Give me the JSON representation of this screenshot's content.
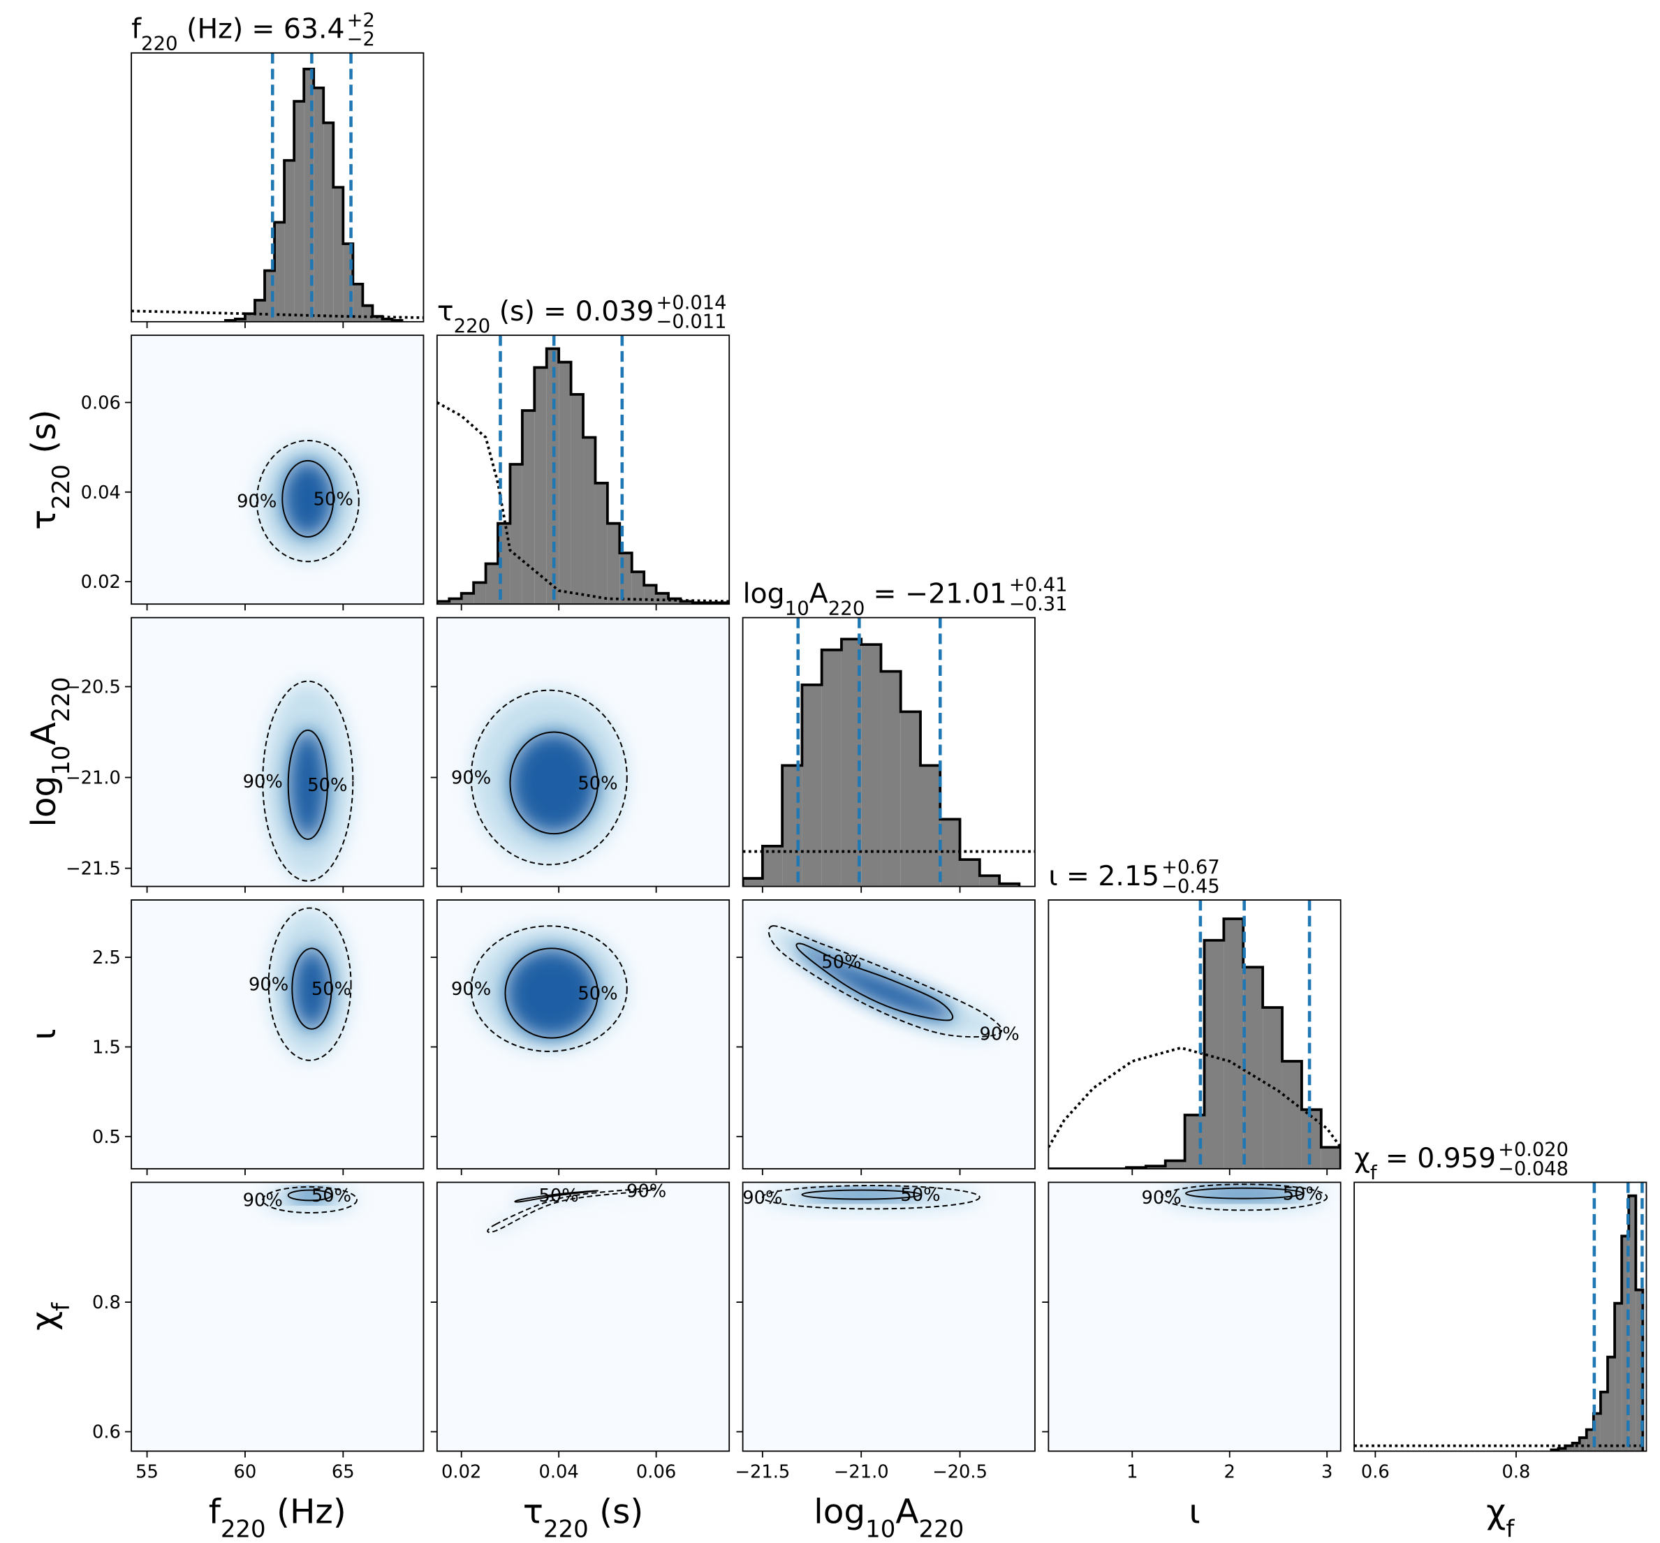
{
  "chart_data": {
    "type": "corner",
    "hist_ylim": [
      0,
      100
    ],
    "colors": {
      "background": "#f7fbff",
      "outer": "#9ecae1",
      "inner": "#08519c",
      "hist": "#808080",
      "quantile": "#1f77b4"
    },
    "parameters": [
      {
        "label": [
          "f",
          "220",
          " (Hz)"
        ],
        "title_value": "= 63.4",
        "upper": "+2",
        "lower": "−2",
        "lim": [
          54.2,
          69.1
        ],
        "ticks": [
          55,
          60,
          65
        ],
        "yticks": [],
        "bins": [
          59,
          59.5,
          60,
          60.5,
          61,
          61.5,
          62,
          62.5,
          63,
          63.5,
          64,
          64.5,
          65,
          65.5,
          66,
          66.5,
          67,
          67.5,
          68
        ],
        "counts": [
          0.5,
          1,
          3,
          8,
          19,
          37,
          60,
          82,
          94,
          87,
          74,
          50,
          29,
          14,
          6,
          2,
          1,
          0.5
        ],
        "prior_x": [
          54.2,
          60,
          65,
          69.1
        ],
        "prior": [
          4,
          3,
          2,
          1.5
        ],
        "quantiles": [
          61.4,
          63.4,
          65.4
        ],
        "panels": []
      },
      {
        "label": [
          "τ",
          "220",
          " (s)"
        ],
        "title_value": "= 0.039",
        "upper": "+0.014",
        "lower": "−0.011",
        "lim": [
          0.015,
          0.075
        ],
        "ticks": [
          0.02,
          0.04,
          0.06
        ],
        "yticks": [
          0.02,
          0.04,
          0.06
        ],
        "bins": [
          0.015,
          0.0175,
          0.02,
          0.0225,
          0.025,
          0.0275,
          0.03,
          0.0325,
          0.035,
          0.0375,
          0.04,
          0.0425,
          0.045,
          0.0475,
          0.05,
          0.0525,
          0.055,
          0.0575,
          0.06,
          0.0625,
          0.065,
          0.0675,
          0.07,
          0.0725,
          0.075
        ],
        "counts": [
          1,
          2,
          4,
          8,
          15,
          30,
          52,
          72,
          88,
          95,
          90,
          78,
          62,
          45,
          30,
          19,
          12,
          7,
          4,
          2,
          1,
          0.5,
          0.5,
          0.5
        ],
        "prior_x": [
          0.015,
          0.02,
          0.025,
          0.0275,
          0.03,
          0.04,
          0.05,
          0.075
        ],
        "prior": [
          75,
          70,
          62,
          45,
          20,
          5,
          2,
          1
        ],
        "quantiles": [
          0.028,
          0.039,
          0.053
        ],
        "panels": [
          {
            "contours": [
              {
                "label": "90%",
                "dashed": true,
                "cx": 63.2,
                "cy": 0.038,
                "rx": 2.6,
                "ry": 0.0135
              },
              {
                "label": "50%",
                "dashed": false,
                "cx": 63.2,
                "cy": 0.0385,
                "rx": 1.3,
                "ry": 0.0085
              }
            ]
          }
        ]
      },
      {
        "label": [
          "log",
          "10",
          "A",
          "220"
        ],
        "title_value": "= −21.01",
        "upper": "+0.41",
        "lower": "−0.31",
        "lim": [
          -21.6,
          -20.12
        ],
        "ticks": [
          {
            "value": -21.5,
            "label": "−21.5"
          },
          {
            "value": -21,
            "label": "−21.0"
          },
          {
            "value": -20.5,
            "label": "−20.5"
          }
        ],
        "yticks": [
          {
            "value": -21.5,
            "label": "−21.5"
          },
          {
            "value": -21,
            "label": "−21.0"
          },
          {
            "value": -20.5,
            "label": "−20.5"
          }
        ],
        "bins": [
          -21.6,
          -21.5,
          -21.4,
          -21.3,
          -21.2,
          -21.1,
          -21,
          -20.9,
          -20.8,
          -20.7,
          -20.6,
          -20.5,
          -20.4,
          -20.3,
          -20.2
        ],
        "counts": [
          3,
          15,
          45,
          75,
          88,
          92,
          90,
          80,
          65,
          45,
          25,
          10,
          4,
          1
        ],
        "prior_x": [
          -21.6,
          -21.2,
          -20.8,
          -20.12
        ],
        "prior": [
          13,
          13,
          13,
          13
        ],
        "quantiles": [
          -21.32,
          -21.01,
          -20.6
        ],
        "panels": [
          {
            "contours": [
              {
                "label": "90%",
                "dashed": true,
                "cx": 63.2,
                "cy": -21.02,
                "rx": 2.3,
                "ry": 0.55
              },
              {
                "label": "50%",
                "dashed": false,
                "cx": 63.2,
                "cy": -21.04,
                "rx": 1.0,
                "ry": 0.3
              }
            ]
          },
          {
            "contours": [
              {
                "label": "90%",
                "dashed": true,
                "cx": 0.038,
                "cy": -21.0,
                "rx": 0.016,
                "ry": 0.48
              },
              {
                "label": "50%",
                "dashed": false,
                "cx": 0.039,
                "cy": -21.03,
                "rx": 0.009,
                "ry": 0.28
              }
            ]
          }
        ]
      },
      {
        "label": [
          "ι"
        ],
        "title_value": "= 2.15",
        "upper": "+0.67",
        "lower": "−0.45",
        "lim": [
          0.14,
          3.14
        ],
        "ticks": [
          1,
          2,
          3
        ],
        "yticks": [
          0.5,
          1.5,
          2.5
        ],
        "bins": [
          0.14,
          0.34,
          0.54,
          0.74,
          0.94,
          1.14,
          1.34,
          1.54,
          1.74,
          1.94,
          2.14,
          2.34,
          2.54,
          2.74,
          2.94,
          3.14
        ],
        "counts": [
          0,
          0,
          0,
          0,
          0.5,
          1,
          3,
          20,
          85,
          93,
          75,
          60,
          40,
          22,
          8
        ],
        "prior_x": [
          0.14,
          0.3,
          0.6,
          1.0,
          1.5,
          2.0,
          2.5,
          3.0,
          3.14
        ],
        "prior": [
          8,
          18,
          30,
          40,
          45,
          40,
          29,
          15,
          8
        ],
        "quantiles": [
          1.7,
          2.15,
          2.82
        ],
        "panels": [
          {
            "contours": [
              {
                "label": "90%",
                "dashed": true,
                "cx": 63.3,
                "cy": 2.2,
                "rx": 2.1,
                "ry": 0.85
              },
              {
                "label": "50%",
                "dashed": false,
                "cx": 63.4,
                "cy": 2.15,
                "rx": 1.0,
                "ry": 0.45
              }
            ]
          },
          {
            "contours": [
              {
                "label": "90%",
                "dashed": true,
                "cx": 0.038,
                "cy": 2.15,
                "rx": 0.016,
                "ry": 0.7
              },
              {
                "label": "50%",
                "dashed": false,
                "cx": 0.0385,
                "cy": 2.1,
                "rx": 0.0095,
                "ry": 0.5
              }
            ]
          },
          {
            "contours": [
              {
                "label": "90%",
                "dashed": true,
                "x": [
                  -21.45,
                  -21.2,
                  -20.85,
                  -20.4,
                  -20.3,
                  -20.6,
                  -21.0,
                  -21.4
                ],
                "y": [
                  2.85,
                  2.65,
                  2.35,
                  1.9,
                  1.65,
                  1.65,
                  2.0,
                  2.55
                ]
              },
              {
                "label": "50%",
                "dashed": false,
                "x": [
                  -21.3,
                  -21.1,
                  -20.85,
                  -20.6,
                  -20.55,
                  -20.8,
                  -21.05,
                  -21.3
                ],
                "y": [
                  2.65,
                  2.45,
                  2.25,
                  2.0,
                  1.8,
                  1.9,
                  2.15,
                  2.55
                ]
              }
            ]
          }
        ]
      },
      {
        "label": [
          "χ",
          "f"
        ],
        "title_value": "= 0.959",
        "upper": "+0.020",
        "lower": "−0.048",
        "lim": [
          0.57,
          0.985
        ],
        "ticks": [
          0.6,
          0.8
        ],
        "yticks": [
          0.6,
          0.8
        ],
        "bins": [
          0.85,
          0.86,
          0.87,
          0.88,
          0.89,
          0.9,
          0.91,
          0.92,
          0.93,
          0.94,
          0.95,
          0.96,
          0.97,
          0.98
        ],
        "counts": [
          0.5,
          1,
          2,
          3,
          5,
          8,
          14,
          22,
          35,
          55,
          80,
          95,
          60
        ],
        "prior_x": [
          0.57,
          0.98
        ],
        "prior": [
          2,
          2
        ],
        "quantiles": [
          0.911,
          0.959,
          0.979
        ],
        "panels": [
          {
            "contours": [
              {
                "label": "90%",
                "dashed": true,
                "cx": 63.3,
                "cy": 0.958,
                "rx": 2.4,
                "ry": 0.02
              },
              {
                "label": "50%",
                "dashed": false,
                "cx": 63.3,
                "cy": 0.965,
                "rx": 1.1,
                "ry": 0.008
              }
            ]
          },
          {
            "contours": [
              {
                "label": "90%",
                "dashed": true,
                "x": [
                  0.027,
                  0.04,
                  0.057,
                  0.058,
                  0.04,
                  0.027
                ],
                "y": [
                  0.92,
                  0.96,
                  0.975,
                  0.972,
                  0.955,
                  0.91
                ]
              },
              {
                "label": "50%",
                "dashed": false,
                "x": [
                  0.032,
                  0.04,
                  0.048,
                  0.04,
                  0.032
                ],
                "y": [
                  0.955,
                  0.965,
                  0.972,
                  0.967,
                  0.958
                ]
              }
            ]
          },
          {
            "contours": [
              {
                "label": "90%",
                "dashed": true,
                "cx": -20.95,
                "cy": 0.962,
                "rx": 0.55,
                "ry": 0.018
              },
              {
                "label": "50%",
                "dashed": false,
                "cx": -21.0,
                "cy": 0.966,
                "rx": 0.3,
                "ry": 0.007
              }
            ]
          },
          {
            "contours": [
              {
                "label": "90%",
                "dashed": true,
                "cx": 2.15,
                "cy": 0.962,
                "rx": 0.85,
                "ry": 0.02
              },
              {
                "label": "50%",
                "dashed": false,
                "cx": 2.15,
                "cy": 0.968,
                "rx": 0.6,
                "ry": 0.008
              }
            ]
          }
        ]
      }
    ]
  }
}
